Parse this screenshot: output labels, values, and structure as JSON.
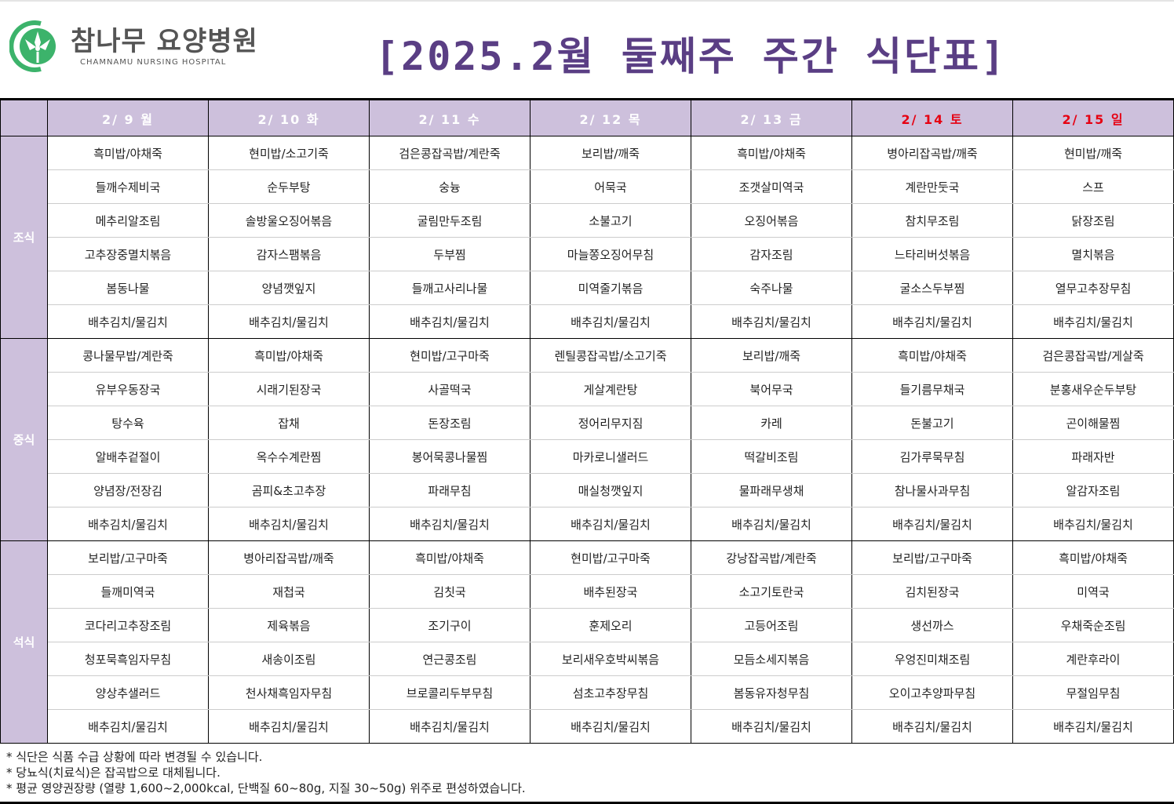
{
  "header": {
    "logo_ko": "참나무 요양병원",
    "logo_en": "CHAMNAMU NURSING HOSPITAL",
    "title": "[2025.2월 둘째주 주간 식단표]",
    "brand_color": "#3cb36b",
    "title_color": "#5a3e84",
    "header_bg": "#cdc0dc",
    "weekend_color": "#e60012"
  },
  "days": [
    {
      "label": "2/ 9 월",
      "weekend": false
    },
    {
      "label": "2/ 10 화",
      "weekend": false
    },
    {
      "label": "2/ 11 수",
      "weekend": false
    },
    {
      "label": "2/ 12 목",
      "weekend": false
    },
    {
      "label": "2/ 13 금",
      "weekend": false
    },
    {
      "label": "2/ 14 토",
      "weekend": true
    },
    {
      "label": "2/ 15 일",
      "weekend": true
    }
  ],
  "meals": [
    {
      "name": "조식",
      "rows": [
        [
          "흑미밥/야채죽",
          "현미밥/소고기죽",
          "검은콩잡곡밥/계란죽",
          "보리밥/깨죽",
          "흑미밥/야채죽",
          "병아리잡곡밥/깨죽",
          "현미밥/깨죽"
        ],
        [
          "들깨수제비국",
          "순두부탕",
          "숭늉",
          "어묵국",
          "조갯살미역국",
          "계란만둣국",
          "스프"
        ],
        [
          "메추리알조림",
          "솔방울오징어볶음",
          "굴림만두조림",
          "소불고기",
          "오징어볶음",
          "참치무조림",
          "닭장조림"
        ],
        [
          "고추장중멸치볶음",
          "감자스팸볶음",
          "두부찜",
          "마늘쫑오징어무침",
          "감자조림",
          "느타리버섯볶음",
          "멸치볶음"
        ],
        [
          "봄동나물",
          "양념깻잎지",
          "들깨고사리나물",
          "미역줄기볶음",
          "숙주나물",
          "굴소스두부찜",
          "열무고추장무침"
        ],
        [
          "배추김치/물김치",
          "배추김치/물김치",
          "배추김치/물김치",
          "배추김치/물김치",
          "배추김치/물김치",
          "배추김치/물김치",
          "배추김치/물김치"
        ]
      ]
    },
    {
      "name": "중식",
      "rows": [
        [
          "콩나물무밥/계란죽",
          "흑미밥/야채죽",
          "현미밥/고구마죽",
          "렌틸콩잡곡밥/소고기죽",
          "보리밥/깨죽",
          "흑미밥/야채죽",
          "검은콩잡곡밥/게살죽"
        ],
        [
          "유부우동장국",
          "시래기된장국",
          "사골떡국",
          "게살계란탕",
          "북어무국",
          "들기름무채국",
          "분홍새우순두부탕"
        ],
        [
          "탕수육",
          "잡채",
          "돈장조림",
          "정어리무지짐",
          "카레",
          "돈불고기",
          "곤이해물찜"
        ],
        [
          "알배추겉절이",
          "옥수수계란찜",
          "봉어묵콩나물찜",
          "마카로니샐러드",
          "떡갈비조림",
          "김가루묵무침",
          "파래자반"
        ],
        [
          "양념장/전장김",
          "곰피&초고추장",
          "파래무침",
          "매실청깻잎지",
          "물파래무생채",
          "참나물사과무침",
          "알감자조림"
        ],
        [
          "배추김치/물김치",
          "배추김치/물김치",
          "배추김치/물김치",
          "배추김치/물김치",
          "배추김치/물김치",
          "배추김치/물김치",
          "배추김치/물김치"
        ]
      ]
    },
    {
      "name": "석식",
      "rows": [
        [
          "보리밥/고구마죽",
          "병아리잡곡밥/깨죽",
          "흑미밥/야채죽",
          "현미밥/고구마죽",
          "강낭잡곡밥/계란죽",
          "보리밥/고구마죽",
          "흑미밥/야채죽"
        ],
        [
          "들깨미역국",
          "재첩국",
          "김칫국",
          "배추된장국",
          "소고기토란국",
          "김치된장국",
          "미역국"
        ],
        [
          "코다리고추장조림",
          "제육볶음",
          "조기구이",
          "훈제오리",
          "고등어조림",
          "생선까스",
          "우채죽순조림"
        ],
        [
          "청포묵흑임자무침",
          "새송이조림",
          "연근콩조림",
          "보리새우호박씨볶음",
          "모듬소세지볶음",
          "우엉진미채조림",
          "계란후라이"
        ],
        [
          "양상추샐러드",
          "천사채흑임자무침",
          "브로콜리두부무침",
          "섬초고추장무침",
          "봄동유자청무침",
          "오이고추양파무침",
          "무절임무침"
        ],
        [
          "배추김치/물김치",
          "배추김치/물김치",
          "배추김치/물김치",
          "배추김치/물김치",
          "배추김치/물김치",
          "배추김치/물김치",
          "배추김치/물김치"
        ]
      ]
    }
  ],
  "notes": [
    "* 식단은 식품 수급 상황에 따라 변경될 수 있습니다.",
    "* 당뇨식(치료식)은 잡곡밥으로 대체됩니다.",
    "* 평균 영양권장량 (열량 1,600~2,000kcal, 단백질 60~80g, 지질 30~50g) 위주로 편성하였습니다."
  ]
}
